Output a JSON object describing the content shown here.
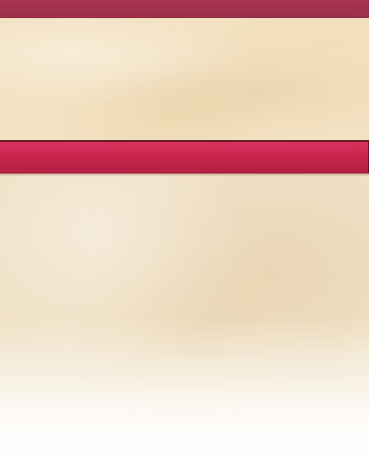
{
  "colors": {
    "top_bar": "#a0324b",
    "panel_background": "#f3e2c2",
    "crimson_bar": "#c8264e",
    "border_dark": "#5a1826"
  }
}
